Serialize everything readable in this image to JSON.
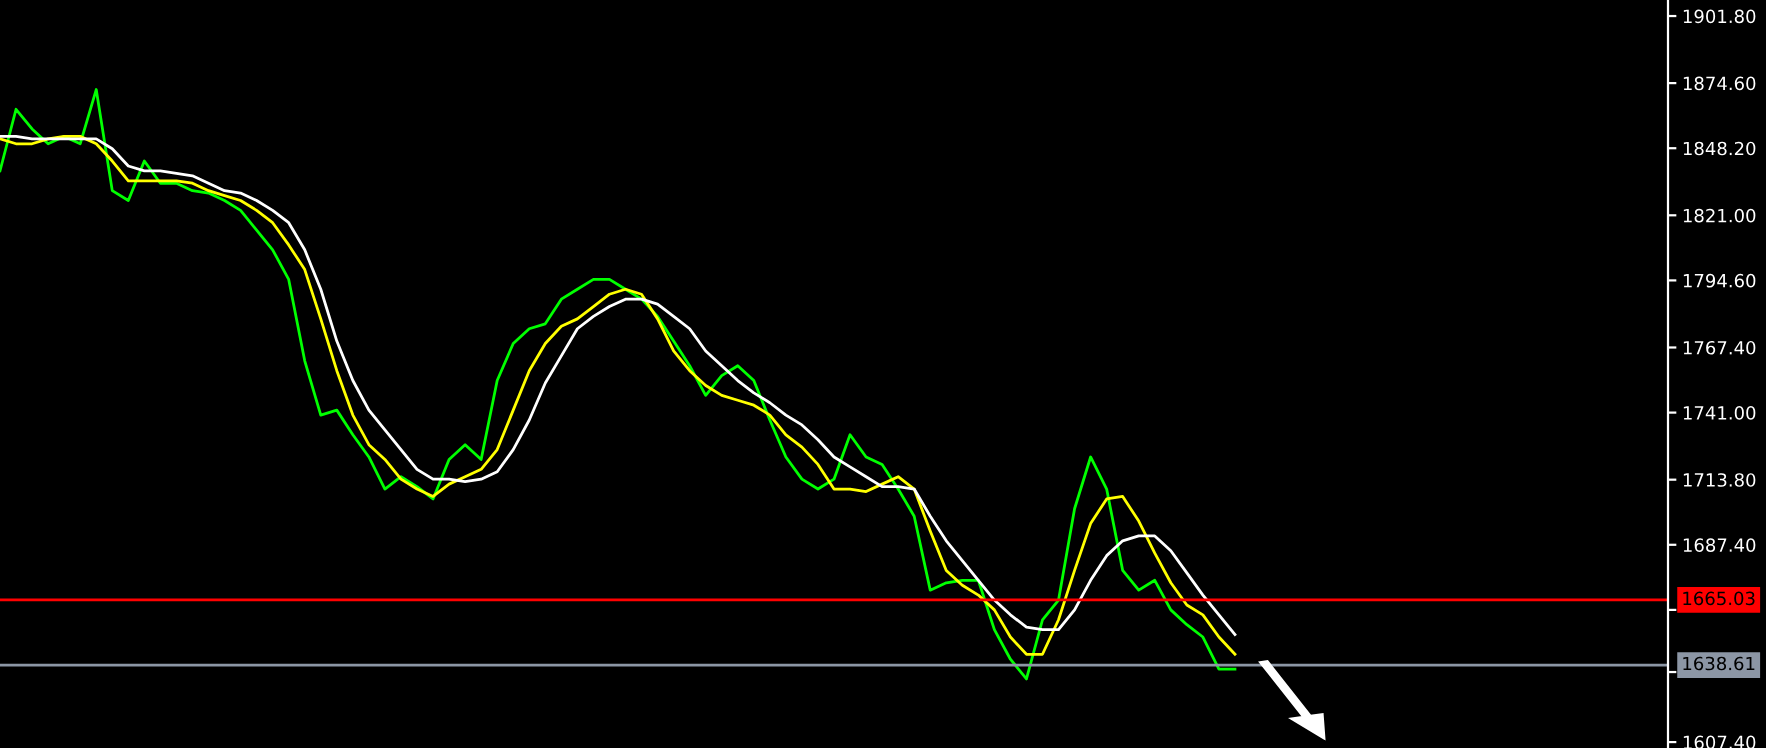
{
  "chart_data": {
    "type": "line",
    "categories": [
      null,
      null,
      null,
      null,
      null,
      null,
      null,
      null,
      null,
      null,
      null,
      null,
      null,
      null,
      null,
      null,
      null,
      null,
      null,
      null,
      null,
      null,
      null,
      null,
      null,
      null,
      null,
      null,
      null,
      null,
      null,
      null,
      null,
      null,
      null,
      null,
      null,
      null,
      null,
      null,
      null,
      null,
      null,
      null,
      null,
      null,
      null,
      null,
      null,
      null,
      null,
      null,
      null,
      null,
      null,
      null,
      null,
      null,
      null,
      null,
      null,
      null,
      null,
      null,
      null,
      null,
      null,
      null,
      null,
      null,
      null,
      null,
      null,
      null,
      null,
      null,
      null,
      null,
      null,
      null,
      null,
      null,
      null,
      null,
      null,
      null,
      null,
      null,
      null,
      null,
      null,
      null,
      null,
      null,
      null,
      null,
      null,
      null,
      null,
      null,
      null,
      null,
      null,
      null,
      null
    ],
    "series": [
      {
        "color": "#00ff00",
        "values": [
          1839,
          1864,
          1856,
          1850,
          1853,
          1850,
          1872,
          1831,
          1827,
          1843,
          1834,
          1834,
          1831,
          1830,
          1827,
          1823,
          1815,
          1807,
          1795,
          1762,
          1740,
          1742,
          1732,
          1723,
          1710,
          1715,
          1711,
          1706,
          1722,
          1728,
          1722,
          1754,
          1769,
          1775,
          1777,
          1787,
          1791,
          1795,
          1795,
          1791,
          1787,
          1780,
          1770,
          1760,
          1748,
          1756,
          1760,
          1754,
          1738,
          1723,
          1714,
          1710,
          1714,
          1732,
          1723,
          1720,
          1710,
          1699,
          1669,
          1672,
          1673,
          1673,
          1653,
          1641,
          1633,
          1657,
          1665,
          1702,
          1723,
          1710,
          1677,
          1669,
          1673,
          1661,
          1655,
          1650,
          1637,
          1637,
          null,
          null,
          null,
          null,
          null,
          null,
          null,
          null,
          null,
          null,
          null,
          null,
          null,
          null,
          null,
          null,
          null,
          null,
          null,
          null,
          null,
          null,
          null,
          null,
          null,
          null,
          null
        ]
      },
      {
        "color": "#ffff00",
        "values": [
          1852,
          1850,
          1850,
          1852,
          1853,
          1853,
          1850,
          1843,
          1835,
          1835,
          1835,
          1835,
          1834,
          1831,
          1829,
          1827,
          1823,
          1818,
          1809,
          1799,
          1779,
          1758,
          1740,
          1728,
          1722,
          1714,
          1710,
          1707,
          1712,
          1715,
          1718,
          1726,
          1742,
          1758,
          1769,
          1776,
          1779,
          1784,
          1789,
          1791,
          1789,
          1779,
          1766,
          1758,
          1752,
          1748,
          1746,
          1744,
          1740,
          1732,
          1727,
          1720,
          1710,
          1710,
          1709,
          1712,
          1715,
          1710,
          1693,
          1677,
          1671,
          1667,
          1661,
          1650,
          1643,
          1643,
          1657,
          1677,
          1696,
          1706,
          1707,
          1697,
          1684,
          1672,
          1663,
          1659,
          1650,
          1643,
          null,
          null,
          null,
          null,
          null,
          null,
          null,
          null,
          null,
          null,
          null,
          null,
          null,
          null,
          null,
          null,
          null,
          null,
          null,
          null,
          null,
          null,
          null,
          null,
          null,
          null,
          null
        ]
      },
      {
        "color": "#ffffff",
        "values": [
          1853,
          1853,
          1852,
          1852,
          1852,
          1852,
          1852,
          1848,
          1841,
          1839,
          1839,
          1838,
          1837,
          1834,
          1831,
          1830,
          1827,
          1823,
          1818,
          1807,
          1791,
          1770,
          1754,
          1742,
          1734,
          1726,
          1718,
          1714,
          1714,
          1713,
          1714,
          1717,
          1726,
          1738,
          1753,
          1764,
          1775,
          1780,
          1784,
          1787,
          1787,
          1785,
          1780,
          1775,
          1766,
          1760,
          1754,
          1749,
          1745,
          1740,
          1736,
          1730,
          1723,
          1719,
          1715,
          1711,
          1711,
          1710,
          1699,
          1689,
          1681,
          1673,
          1665,
          1659,
          1654,
          1653,
          1653,
          1661,
          1673,
          1683,
          1689,
          1691,
          1691,
          1685,
          1676,
          1667,
          1659,
          1651,
          null,
          null,
          null,
          null,
          null,
          null,
          null,
          null,
          null,
          null,
          null,
          null,
          null,
          null,
          null,
          null,
          null,
          null,
          null,
          null,
          null,
          null,
          null,
          null,
          null,
          null,
          null
        ]
      }
    ],
    "ylim": [
      1605.0,
      1908.3
    ],
    "yticks": [
      {
        "value": 1901.8,
        "label": "1901.80"
      },
      {
        "value": 1874.6,
        "label": "1874.60"
      },
      {
        "value": 1848.2,
        "label": "1848.20"
      },
      {
        "value": 1821.0,
        "label": "1821.00"
      },
      {
        "value": 1794.6,
        "label": "1794.60"
      },
      {
        "value": 1767.4,
        "label": "1767.40"
      },
      {
        "value": 1741.0,
        "label": "1741.00"
      },
      {
        "value": 1713.8,
        "label": "1713.80"
      },
      {
        "value": 1687.4,
        "label": "1687.40"
      },
      {
        "value": 1661.0,
        "label": null
      },
      {
        "value": 1635.8,
        "label": null
      },
      {
        "value": 1607.4,
        "label": "1607.40"
      }
    ],
    "ref_lines": [
      {
        "axis": "y",
        "value": 1665.03,
        "label": "1665.03",
        "color": "#ff0000"
      },
      {
        "axis": "y",
        "value": 1638.61,
        "label": "1638.61",
        "color": "#8c96a5"
      }
    ],
    "tick_labels": "y",
    "grid": false,
    "legend": false
  }
}
